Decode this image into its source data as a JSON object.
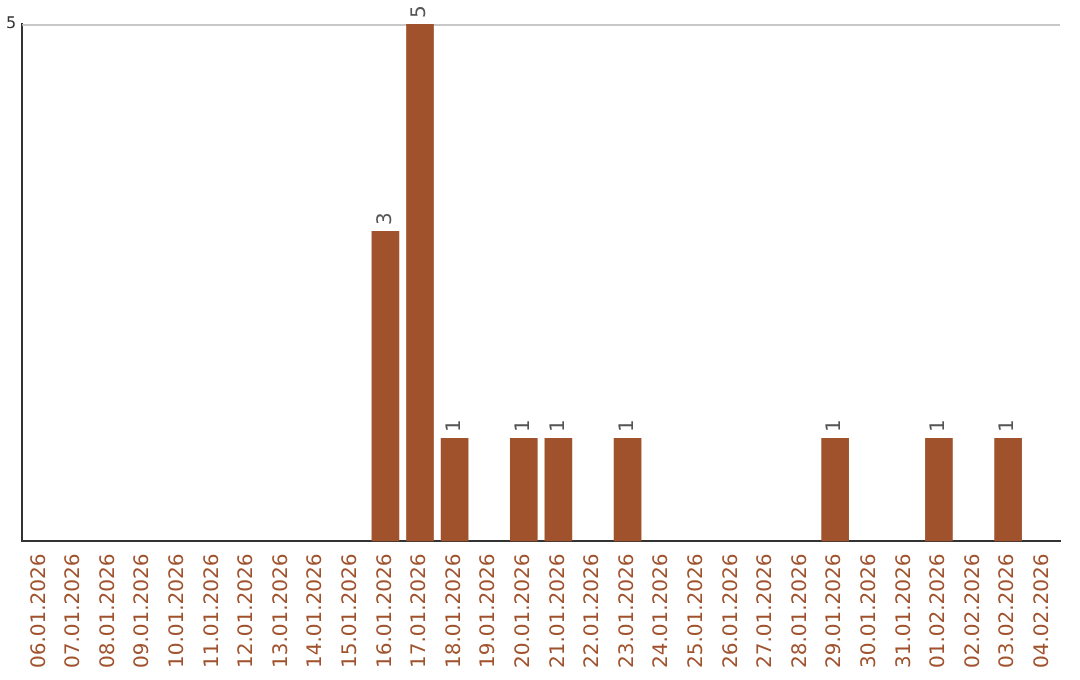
{
  "chart_data": {
    "type": "bar",
    "categories": [
      "06.01.2026",
      "07.01.2026",
      "08.01.2026",
      "09.01.2026",
      "10.01.2026",
      "11.01.2026",
      "12.01.2026",
      "13.01.2026",
      "14.01.2026",
      "15.01.2026",
      "16.01.2026",
      "17.01.2026",
      "18.01.2026",
      "19.01.2026",
      "20.01.2026",
      "21.01.2026",
      "22.01.2026",
      "23.01.2026",
      "24.01.2026",
      "25.01.2026",
      "26.01.2026",
      "27.01.2026",
      "28.01.2026",
      "29.01.2026",
      "30.01.2026",
      "31.01.2026",
      "01.02.2026",
      "02.02.2026",
      "03.02.2026",
      "04.02.2026"
    ],
    "values": [
      0,
      0,
      0,
      0,
      0,
      0,
      0,
      0,
      0,
      0,
      3,
      5,
      1,
      0,
      1,
      1,
      0,
      1,
      0,
      0,
      0,
      0,
      0,
      1,
      0,
      0,
      1,
      0,
      1,
      0
    ],
    "value_labels": [
      null,
      null,
      null,
      null,
      null,
      null,
      null,
      null,
      null,
      null,
      "3",
      "5",
      "1",
      null,
      "1",
      "1",
      null,
      "1",
      null,
      null,
      null,
      null,
      null,
      "1",
      null,
      null,
      "1",
      null,
      "1",
      null
    ],
    "color": "#a0522d",
    "ylim": [
      0,
      5
    ],
    "yticks": [
      5
    ],
    "legend": false
  }
}
